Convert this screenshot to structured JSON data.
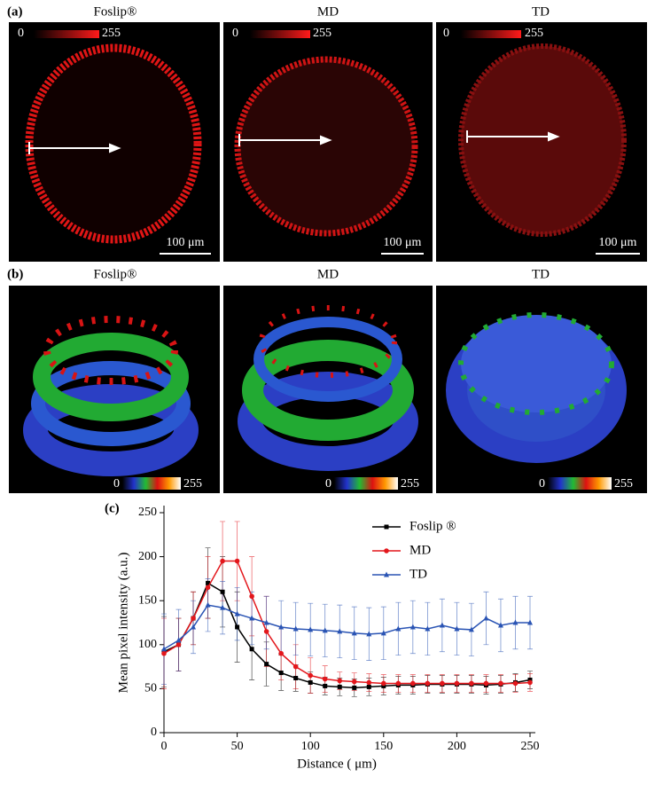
{
  "figure": {
    "panel_a": {
      "label": "(a)",
      "titles": [
        "Foslip®",
        "MD",
        "TD"
      ],
      "colorbar_min": "0",
      "colorbar_max": "255",
      "scale_bar": "100 μm"
    },
    "panel_b": {
      "label": "(b)",
      "titles": [
        "Foslip®",
        "MD",
        "TD"
      ],
      "colorbar_min": "0",
      "colorbar_max": "255"
    },
    "panel_c": {
      "label": "(c)"
    }
  },
  "chart_data": {
    "type": "line",
    "x_label": "Distance ( μm)",
    "y_label": "Mean pixel intensity (a.u.)",
    "x": [
      0,
      10,
      20,
      30,
      40,
      50,
      60,
      70,
      80,
      90,
      100,
      110,
      120,
      130,
      140,
      150,
      160,
      170,
      180,
      190,
      200,
      210,
      220,
      230,
      240,
      250
    ],
    "series": [
      {
        "name": "Foslip ®",
        "color": "#000000",
        "marker": "square",
        "values": [
          92,
          100,
          130,
          170,
          160,
          120,
          95,
          78,
          68,
          62,
          57,
          53,
          52,
          51,
          52,
          53,
          54,
          54,
          55,
          55,
          55,
          55,
          54,
          55,
          57,
          60
        ],
        "errors": [
          40,
          30,
          30,
          40,
          40,
          40,
          35,
          25,
          20,
          15,
          12,
          10,
          10,
          10,
          10,
          10,
          10,
          10,
          10,
          10,
          10,
          10,
          10,
          10,
          10,
          10
        ]
      },
      {
        "name": "MD",
        "color": "#e3171c",
        "marker": "circle",
        "values": [
          90,
          100,
          130,
          165,
          195,
          195,
          155,
          115,
          90,
          75,
          65,
          61,
          59,
          58,
          57,
          56,
          56,
          56,
          56,
          56,
          56,
          56,
          56,
          56,
          56,
          57
        ],
        "errors": [
          40,
          30,
          30,
          35,
          45,
          45,
          45,
          40,
          30,
          25,
          20,
          15,
          10,
          10,
          10,
          10,
          10,
          10,
          10,
          10,
          10,
          10,
          10,
          10,
          10,
          10
        ]
      },
      {
        "name": "TD",
        "color": "#2a54b4",
        "marker": "triangle",
        "values": [
          95,
          105,
          120,
          145,
          142,
          135,
          130,
          125,
          120,
          118,
          117,
          116,
          115,
          113,
          112,
          113,
          118,
          120,
          118,
          122,
          118,
          117,
          130,
          122,
          125,
          125
        ],
        "errors": [
          40,
          35,
          30,
          30,
          30,
          30,
          30,
          30,
          30,
          30,
          30,
          30,
          30,
          30,
          30,
          30,
          30,
          30,
          30,
          30,
          30,
          30,
          30,
          30,
          30,
          30
        ]
      }
    ],
    "xlim": [
      0,
      250
    ],
    "ylim": [
      0,
      250
    ],
    "xticks": [
      0,
      50,
      100,
      150,
      200,
      250
    ],
    "yticks": [
      0,
      50,
      100,
      150,
      200,
      250
    ],
    "grid": false,
    "legend": "top right"
  }
}
